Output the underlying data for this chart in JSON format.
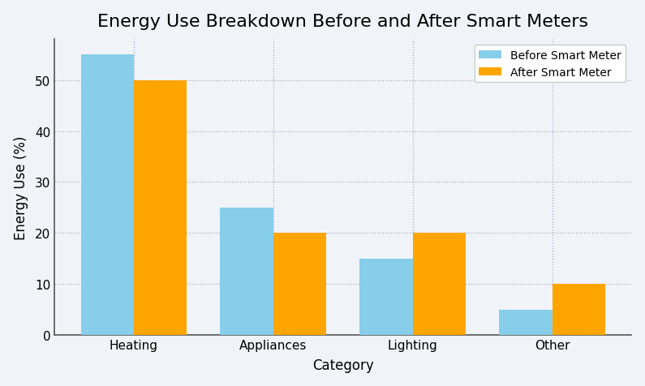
{
  "title": "Energy Use Breakdown Before and After Smart Meters",
  "xlabel": "Category",
  "ylabel": "Energy Use (%)",
  "categories": [
    "Heating",
    "Appliances",
    "Lighting",
    "Other"
  ],
  "before_values": [
    55,
    25,
    15,
    5
  ],
  "after_values": [
    50,
    20,
    20,
    10
  ],
  "before_color": "#87CEEB",
  "after_color": "#FFA500",
  "before_label": "Before Smart Meter",
  "after_label": "After Smart Meter",
  "ylim": [
    0,
    58
  ],
  "bar_width": 0.38,
  "background_color": "#F0F4F8",
  "plot_bg_color": "#F0F4F8",
  "grid_color": "#AAAACC",
  "title_fontsize": 16,
  "axis_label_fontsize": 12,
  "tick_fontsize": 11,
  "legend_fontsize": 10,
  "yticks": [
    0,
    10,
    20,
    30,
    40,
    50
  ]
}
